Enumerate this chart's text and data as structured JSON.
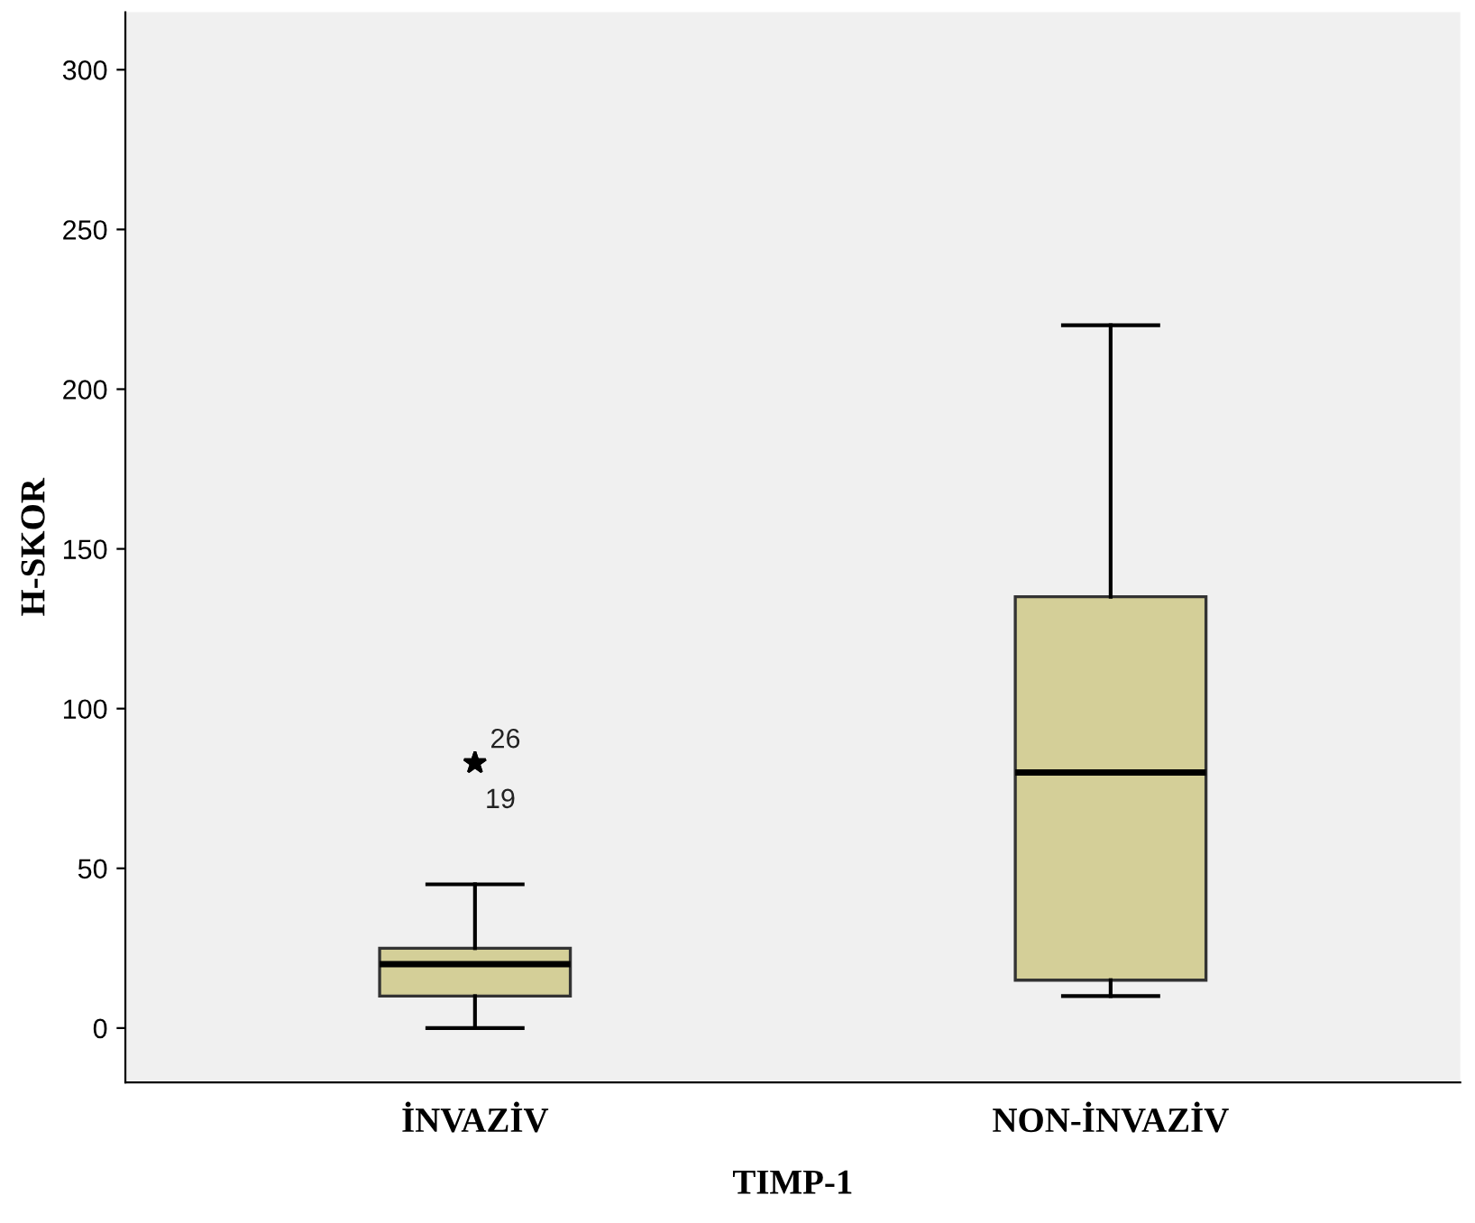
{
  "chart_data": {
    "type": "box",
    "xlabel": "TIMP-1",
    "ylabel": "H-SKOR",
    "categories": [
      "İNVAZİV",
      "NON-İNVAZİV"
    ],
    "boxes": [
      {
        "low": 0,
        "q1": 10,
        "median": 20,
        "q3": 25,
        "high": 45,
        "outliers": [
          83,
          83
        ]
      },
      {
        "low": 10,
        "q1": 15,
        "median": 80,
        "q3": 135,
        "high": 220
      }
    ],
    "color": "#d4cf98",
    "marker": "star",
    "ylim": [
      -17,
      318
    ],
    "yticks": [
      0,
      50,
      100,
      150,
      200,
      250,
      300
    ],
    "grid": false,
    "annotations": [
      "26",
      "19"
    ]
  }
}
